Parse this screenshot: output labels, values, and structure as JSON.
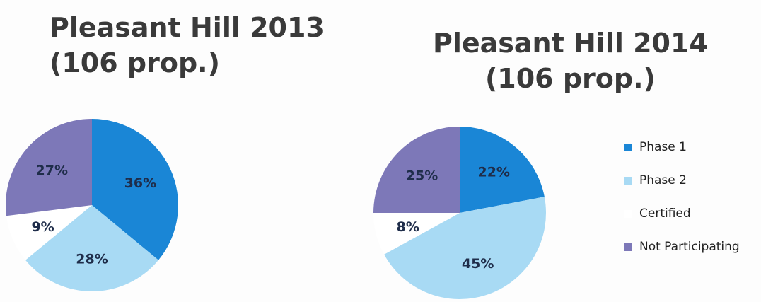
{
  "chart_data": [
    {
      "type": "pie",
      "title_lines": [
        "Pleasant Hill 2013",
        "(106 prop.)"
      ],
      "categories": [
        "Phase 1",
        "Phase 2",
        "Certified",
        "Not Participating"
      ],
      "values": [
        36,
        28,
        9,
        27
      ],
      "labels": [
        "36%",
        "28%",
        "9%",
        "27%"
      ]
    },
    {
      "type": "pie",
      "title_lines": [
        "Pleasant Hill 2014",
        "(106 prop.)"
      ],
      "categories": [
        "Phase 1",
        "Phase 2",
        "Certified",
        "Not Participating"
      ],
      "values": [
        22,
        45,
        8,
        25
      ],
      "labels": [
        "22%",
        "45%",
        "8%",
        "25%"
      ]
    }
  ],
  "legend": {
    "placement": "right",
    "items": [
      {
        "label": "Phase 1",
        "color": "#1a86d6"
      },
      {
        "label": "Phase 2",
        "color": "#a8daf4"
      },
      {
        "label": "Certified",
        "color": "#ffffff"
      },
      {
        "label": "Not Participating",
        "color": "#7d78b8"
      }
    ]
  }
}
